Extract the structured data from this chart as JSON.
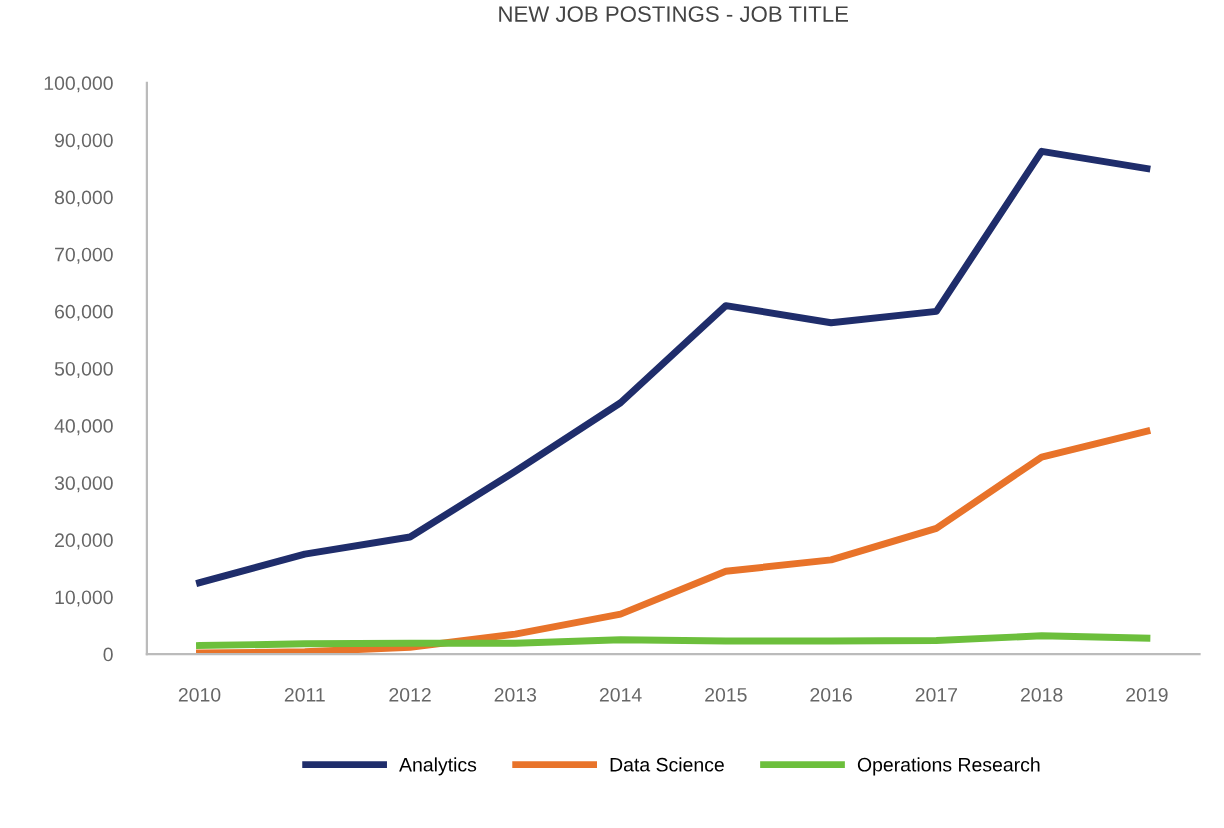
{
  "chart_data": {
    "type": "line",
    "title": "NEW JOB POSTINGS - JOB TITLE",
    "categories": [
      "2010",
      "2011",
      "2012",
      "2013",
      "2014",
      "2015",
      "2016",
      "2017",
      "2018",
      "2019"
    ],
    "series": [
      {
        "name": "Analytics",
        "color": "#1f2d6b",
        "values": [
          12500,
          17500,
          20500,
          32000,
          44000,
          61000,
          58000,
          60000,
          88000,
          85000
        ]
      },
      {
        "name": "Data Science",
        "color": "#e8732a",
        "values": [
          200,
          400,
          1200,
          3500,
          7000,
          14500,
          16500,
          22000,
          34500,
          39000
        ]
      },
      {
        "name": "Operations Research",
        "color": "#6cbf3c",
        "values": [
          1500,
          1800,
          1900,
          1900,
          2500,
          2300,
          2300,
          2400,
          3200,
          2800
        ]
      }
    ],
    "ylim": [
      0,
      100000
    ],
    "yticks": [
      {
        "value": 0,
        "label": "0"
      },
      {
        "value": 10000,
        "label": "10,000"
      },
      {
        "value": 20000,
        "label": "20,000"
      },
      {
        "value": 30000,
        "label": "30,000"
      },
      {
        "value": 40000,
        "label": "40,000"
      },
      {
        "value": 50000,
        "label": "50,000"
      },
      {
        "value": 60000,
        "label": "60,000"
      },
      {
        "value": 70000,
        "label": "70,000"
      },
      {
        "value": 80000,
        "label": "80,000"
      },
      {
        "value": 90000,
        "label": "90,000"
      },
      {
        "value": 100000,
        "label": "100,000"
      }
    ],
    "grid": false,
    "legend": "bottom",
    "marker": "none",
    "line_style": "solid"
  }
}
